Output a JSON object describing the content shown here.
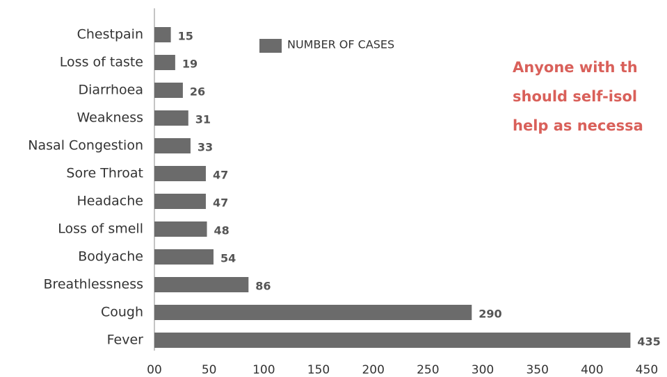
{
  "chart_data": {
    "type": "barh",
    "categories": [
      "Chestpain",
      "Loss of taste",
      "Diarrhoea",
      "Weakness",
      "Nasal Congestion",
      "Sore Throat",
      "Headache",
      "Loss of smell",
      "Bodyache",
      "Breathlessness",
      "Cough",
      "Fever"
    ],
    "series": [
      {
        "name": "NUMBER OF CASES",
        "color": "#6b6b6b",
        "values": [
          15,
          19,
          26,
          31,
          33,
          47,
          47,
          48,
          54,
          86,
          290,
          435
        ]
      }
    ],
    "xlim": [
      0,
      450
    ],
    "xticks": [
      {
        "value": 0,
        "label": "00"
      },
      50,
      100,
      150,
      200,
      250,
      300,
      350,
      400,
      450
    ],
    "legend": "top",
    "annotation": [
      "Anyone with th",
      "should self-isol",
      "help as necessa"
    ]
  }
}
